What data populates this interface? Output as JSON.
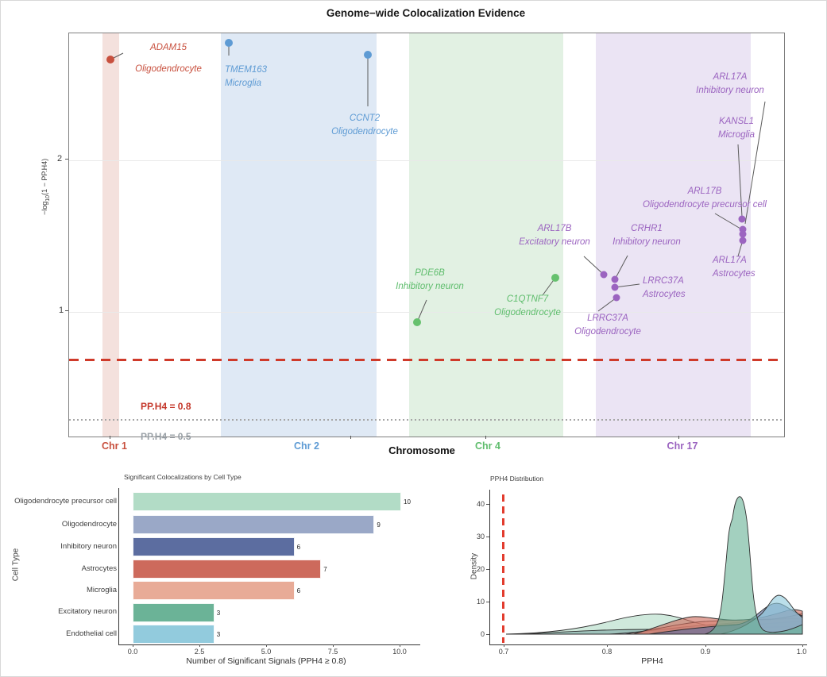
{
  "figure_title": "Genome−wide Colocalization Evidence",
  "chart_data": [
    {
      "type": "scatter",
      "title": "Genome−wide Colocalization Evidence",
      "xlabel": "Chromosome",
      "ylabel": "-log10(1 - PP.H4)",
      "ylabel_parts": {
        "prefix": "−log",
        "sub": "10",
        "suffix": "(1 − PP.H4)"
      },
      "ytick_labels": [
        "2",
        "1"
      ],
      "x_categories": [
        "Chr 1",
        "Chr 2",
        "Chr 4",
        "Chr 17"
      ],
      "band_colors": {
        "Chr 1": "#f4e1dd",
        "Chr 2": "#dfe9f5",
        "Chr 4": "#e2f1e3",
        "Chr 17": "#ebe4f4"
      },
      "point_colors": {
        "Chr 1": "#c8503e",
        "Chr 2": "#5e9bd4",
        "Chr 4": "#5fbd6d",
        "Chr 17": "#9b64c0"
      },
      "ylim": [
        0.25,
        2.85
      ],
      "grid": true,
      "thresholds": [
        {
          "label": "PP.H4 = 0.8",
          "y": 0.699,
          "style": "dashed",
          "color": "#c4372a"
        },
        {
          "label": "PP.H4 = 0.5",
          "y": 0.301,
          "style": "dotted",
          "color": "#9aa1a7"
        }
      ],
      "points": [
        {
          "gene": "ADAM15",
          "cell_type": "Oligodendrocyte",
          "chromosome": "Chr 1",
          "value": 2.67
        },
        {
          "gene": "TMEM163",
          "cell_type": "Microglia",
          "chromosome": "Chr 2",
          "value": 2.78
        },
        {
          "gene": "CCNT2",
          "cell_type": "Oligodendrocyte",
          "chromosome": "Chr 2",
          "value": 2.7
        },
        {
          "gene": "PDE6B",
          "cell_type": "Inhibitory neuron",
          "chromosome": "Chr 4",
          "value": 0.93
        },
        {
          "gene": "C1QTNF7",
          "cell_type": "Oligodendrocyte",
          "chromosome": "Chr 4",
          "value": 1.23
        },
        {
          "gene": "ARL17B",
          "cell_type": "Excitatory neuron",
          "chromosome": "Chr 17",
          "value": 1.25
        },
        {
          "gene": "CRHR1",
          "cell_type": "Inhibitory neuron",
          "chromosome": "Chr 17",
          "value": 1.21
        },
        {
          "gene": "LRRC37A",
          "cell_type": "Astrocytes",
          "chromosome": "Chr 17",
          "value": 1.16
        },
        {
          "gene": "LRRC37A",
          "cell_type": "Oligodendrocyte",
          "chromosome": "Chr 17",
          "value": 1.09
        },
        {
          "gene": "KANSL1",
          "cell_type": "Microglia",
          "chromosome": "Chr 17",
          "value": 1.61
        },
        {
          "gene": "ARL17B",
          "cell_type": "Oligodendrocyte precursor cell",
          "chromosome": "Chr 17",
          "value": 1.54
        },
        {
          "gene": "ARL17A",
          "cell_type": "Inhibitory neuron",
          "chromosome": "Chr 17",
          "value": 1.51
        },
        {
          "gene": "ARL17A",
          "cell_type": "Astrocytes",
          "chromosome": "Chr 17",
          "value": 1.47
        }
      ]
    },
    {
      "type": "bar",
      "title": "Significant Colocalizations by Cell Type",
      "xlabel": "Number of Significant Signals (PPH4 ≥ 0.8)",
      "ylabel": "Cell Type",
      "categories": [
        "Oligodendrocyte precursor cell",
        "Oligodendrocyte",
        "Inhibitory neuron",
        "Astrocytes",
        "Microglia",
        "Excitatory neuron",
        "Endothelial cell"
      ],
      "values": [
        10,
        9,
        6,
        7,
        6,
        3,
        3
      ],
      "colors": [
        "#b2dcc6",
        "#9aa8c7",
        "#5c6da0",
        "#cd6a5c",
        "#e8ab97",
        "#6bb397",
        "#92cbdd"
      ],
      "xticks": [
        "0.0",
        "2.5",
        "5.0",
        "7.5",
        "10.0"
      ],
      "xlim": [
        0,
        10.5
      ]
    },
    {
      "type": "area",
      "title": "PPH4 Distribution",
      "xlabel": "PPH4",
      "ylabel": "Density",
      "xticks": [
        "0.7",
        "0.8",
        "0.9",
        "1.0"
      ],
      "ytick_labels": [
        "40",
        "30",
        "20",
        "10",
        "0"
      ],
      "yticks": [
        0,
        10,
        20,
        30,
        40
      ],
      "xlim": [
        0.68,
        1.0
      ],
      "ylim": [
        0,
        43
      ],
      "threshold": {
        "x": 0.7,
        "style": "dashed",
        "color": "#e23c2e"
      },
      "series": [
        {
          "name": "Excitatory neuron",
          "color": "#6bb397",
          "peak_x": 0.938,
          "peak_density": 42
        },
        {
          "name": "Endothelial cell",
          "color": "#92cbdd",
          "peak_x": 0.975,
          "peak_density": 12
        },
        {
          "name": "Inhibitory neuron",
          "color": "#5c6da0",
          "peak_x": 0.965,
          "peak_density": 9.5
        },
        {
          "name": "Astrocytes",
          "color": "#cd6a5c",
          "peak_x": 0.89,
          "peak_density": 7
        },
        {
          "name": "Microglia",
          "color": "#e8ab97",
          "peak_x": 0.98,
          "peak_density": 6.5
        },
        {
          "name": "Oligodendrocyte",
          "color": "#9aa8c7",
          "peak_x": 0.96,
          "peak_density": 5
        },
        {
          "name": "Oligodendrocyte precursor cell",
          "color": "#b2dcc6",
          "peak_x": 0.845,
          "peak_density": 6
        }
      ]
    }
  ]
}
